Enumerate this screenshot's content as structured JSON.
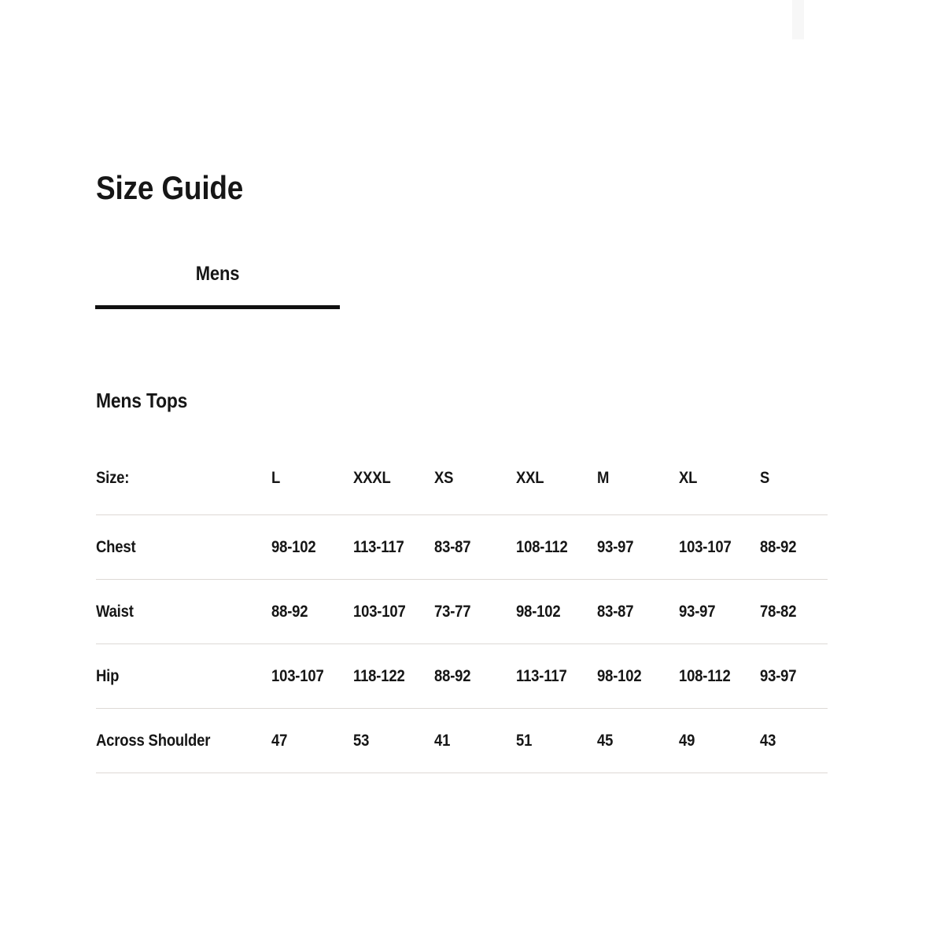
{
  "page": {
    "title": "Size Guide"
  },
  "tabs": [
    {
      "label": "Mens",
      "active": true
    }
  ],
  "section": {
    "heading": "Mens Tops"
  },
  "size_table": {
    "row_header": "Size:",
    "columns": [
      "L",
      "XXXL",
      "XS",
      "XXL",
      "M",
      "XL",
      "S"
    ],
    "rows": [
      {
        "label": "Chest",
        "values": [
          "98-102",
          "113-117",
          "83-87",
          "108-112",
          "93-97",
          "103-107",
          "88-92"
        ]
      },
      {
        "label": "Waist",
        "values": [
          "88-92",
          "103-107",
          "73-77",
          "98-102",
          "83-87",
          "93-97",
          "78-82"
        ]
      },
      {
        "label": "Hip",
        "values": [
          "103-107",
          "118-122",
          "88-92",
          "113-117",
          "98-102",
          "108-112",
          "93-97"
        ]
      },
      {
        "label": "Across Shoulder",
        "values": [
          "47",
          "53",
          "41",
          "51",
          "45",
          "49",
          "43"
        ]
      }
    ]
  },
  "colors": {
    "background": "#ffffff",
    "text": "#161616",
    "divider": "#ddd9d5",
    "tab_underline": "#101010"
  }
}
